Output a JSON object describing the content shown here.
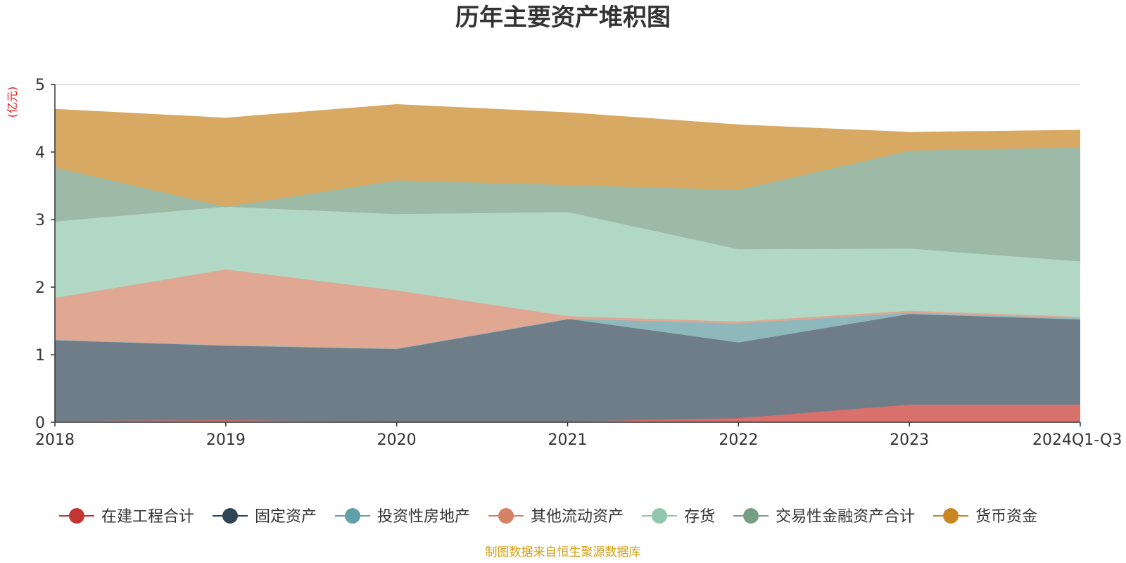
{
  "title": "历年主要资产堆积图",
  "unit_label": "(亿元)",
  "source_note": "制图数据来自恒生聚源数据库",
  "chart_data": {
    "type": "area",
    "stacked": true,
    "title": "历年主要资产堆积图",
    "ylabel": "(亿元)",
    "xlabel": "",
    "categories": [
      "2018",
      "2019",
      "2020",
      "2021",
      "2022",
      "2023",
      "2024Q1-Q3"
    ],
    "y_ticks": [
      "0",
      "1",
      "2",
      "3",
      "4",
      "5"
    ],
    "ylim": [
      0,
      5
    ],
    "grid": true,
    "legend_position": "bottom",
    "series": [
      {
        "name": "在建工程合计",
        "color": "#c23531",
        "fill": "#d8706b",
        "values": [
          0.02,
          0.03,
          0.01,
          0.01,
          0.06,
          0.26,
          0.26
        ]
      },
      {
        "name": "固定资产",
        "color": "#2f4554",
        "fill": "#6e7d88",
        "values": [
          1.2,
          1.11,
          1.08,
          1.52,
          1.12,
          1.34,
          1.26
        ]
      },
      {
        "name": "投资性房地产",
        "color": "#61a0a8",
        "fill": "#8fb8bd",
        "values": [
          0.0,
          0.0,
          0.0,
          0.0,
          0.28,
          0.02,
          0.02
        ]
      },
      {
        "name": "其他流动资产",
        "color": "#d48265",
        "fill": "#e0a793",
        "values": [
          0.62,
          1.12,
          0.86,
          0.04,
          0.03,
          0.03,
          0.02
        ]
      },
      {
        "name": "存货",
        "color": "#91c7ae",
        "fill": "#b0d8c4",
        "values": [
          1.13,
          0.93,
          1.13,
          1.54,
          1.07,
          0.92,
          0.82
        ]
      },
      {
        "name": "交易性金融资产合计",
        "color": "#749f83",
        "fill": "#9dbaa6",
        "values": [
          0.8,
          0.0,
          0.5,
          0.4,
          0.88,
          1.45,
          1.69
        ]
      },
      {
        "name": "货币资金",
        "color": "#ca8622",
        "fill": "#d8a962",
        "values": [
          0.86,
          1.31,
          1.12,
          1.07,
          0.96,
          0.27,
          0.25
        ]
      }
    ]
  }
}
